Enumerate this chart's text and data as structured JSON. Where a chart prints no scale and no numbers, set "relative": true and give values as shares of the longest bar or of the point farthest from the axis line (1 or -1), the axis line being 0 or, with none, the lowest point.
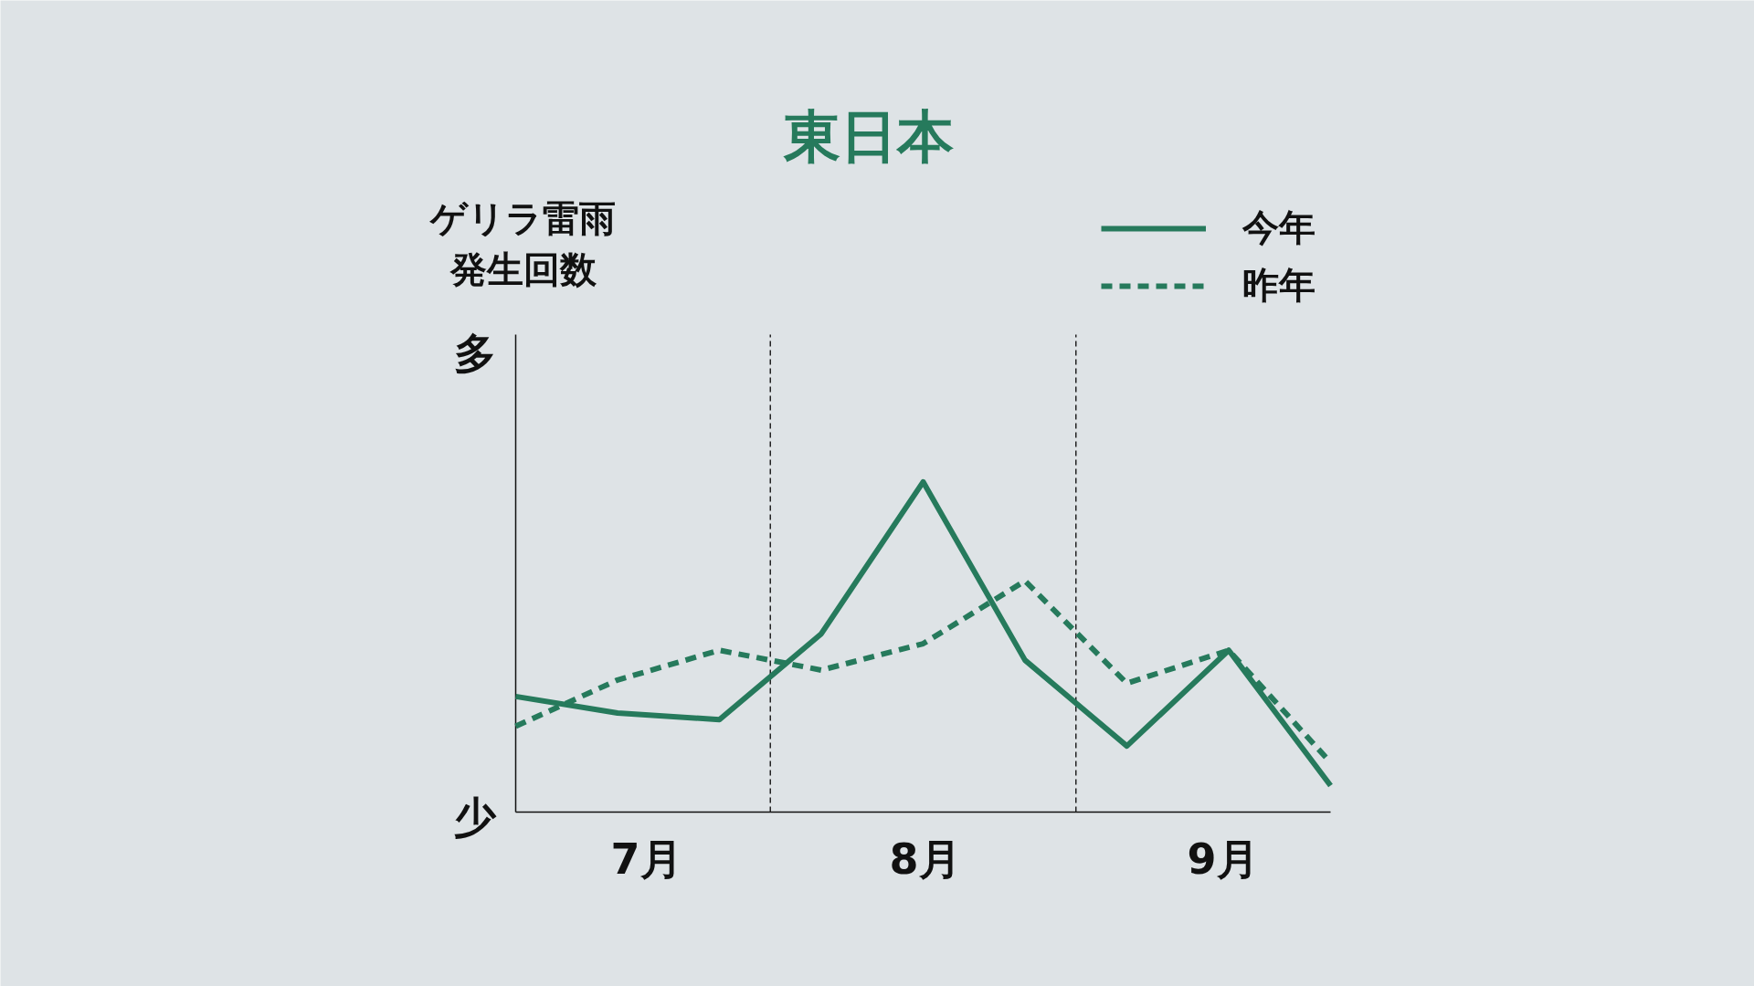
{
  "chart_data": {
    "type": "line",
    "title": "東日本",
    "relative": true,
    "categories": [
      null,
      null,
      null,
      null,
      null,
      null,
      null,
      null,
      null
    ],
    "series": [
      {
        "name": "今年",
        "color": "#267a5c",
        "line_style": "solid",
        "values": [
          0.35,
          0.3,
          0.28,
          0.54,
          1.0,
          0.46,
          0.2,
          0.49,
          0.08
        ]
      },
      {
        "name": "昨年",
        "color": "#267a5c",
        "line_style": "dashed",
        "values": [
          0.26,
          0.4,
          0.49,
          0.43,
          0.51,
          0.7,
          0.39,
          0.49,
          0.15
        ]
      }
    ],
    "annotations": [
      "ゲリラ雷雨",
      "発生回数",
      "多",
      "少",
      "7月",
      "8月",
      "9月"
    ],
    "legend": "top right",
    "marker": "none"
  }
}
